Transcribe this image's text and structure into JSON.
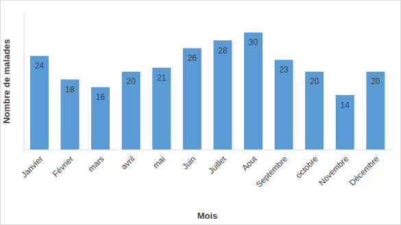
{
  "chart_data": {
    "type": "bar",
    "x_label": "Mois",
    "y_label": "Nombre de malades",
    "categories": [
      "Janvier",
      "Février",
      "mars",
      "avril",
      "mai",
      "Juin",
      "Juillet",
      "Aout",
      "Septembre",
      "octobre",
      "Novembre",
      "Décembre"
    ],
    "values": [
      24,
      18,
      16,
      20,
      21,
      26,
      28,
      30,
      23,
      20,
      14,
      20
    ],
    "color": "#5b9bd5",
    "ylim": [
      0,
      35
    ],
    "grid": false,
    "data_labels": true,
    "tick_labels": "x"
  }
}
